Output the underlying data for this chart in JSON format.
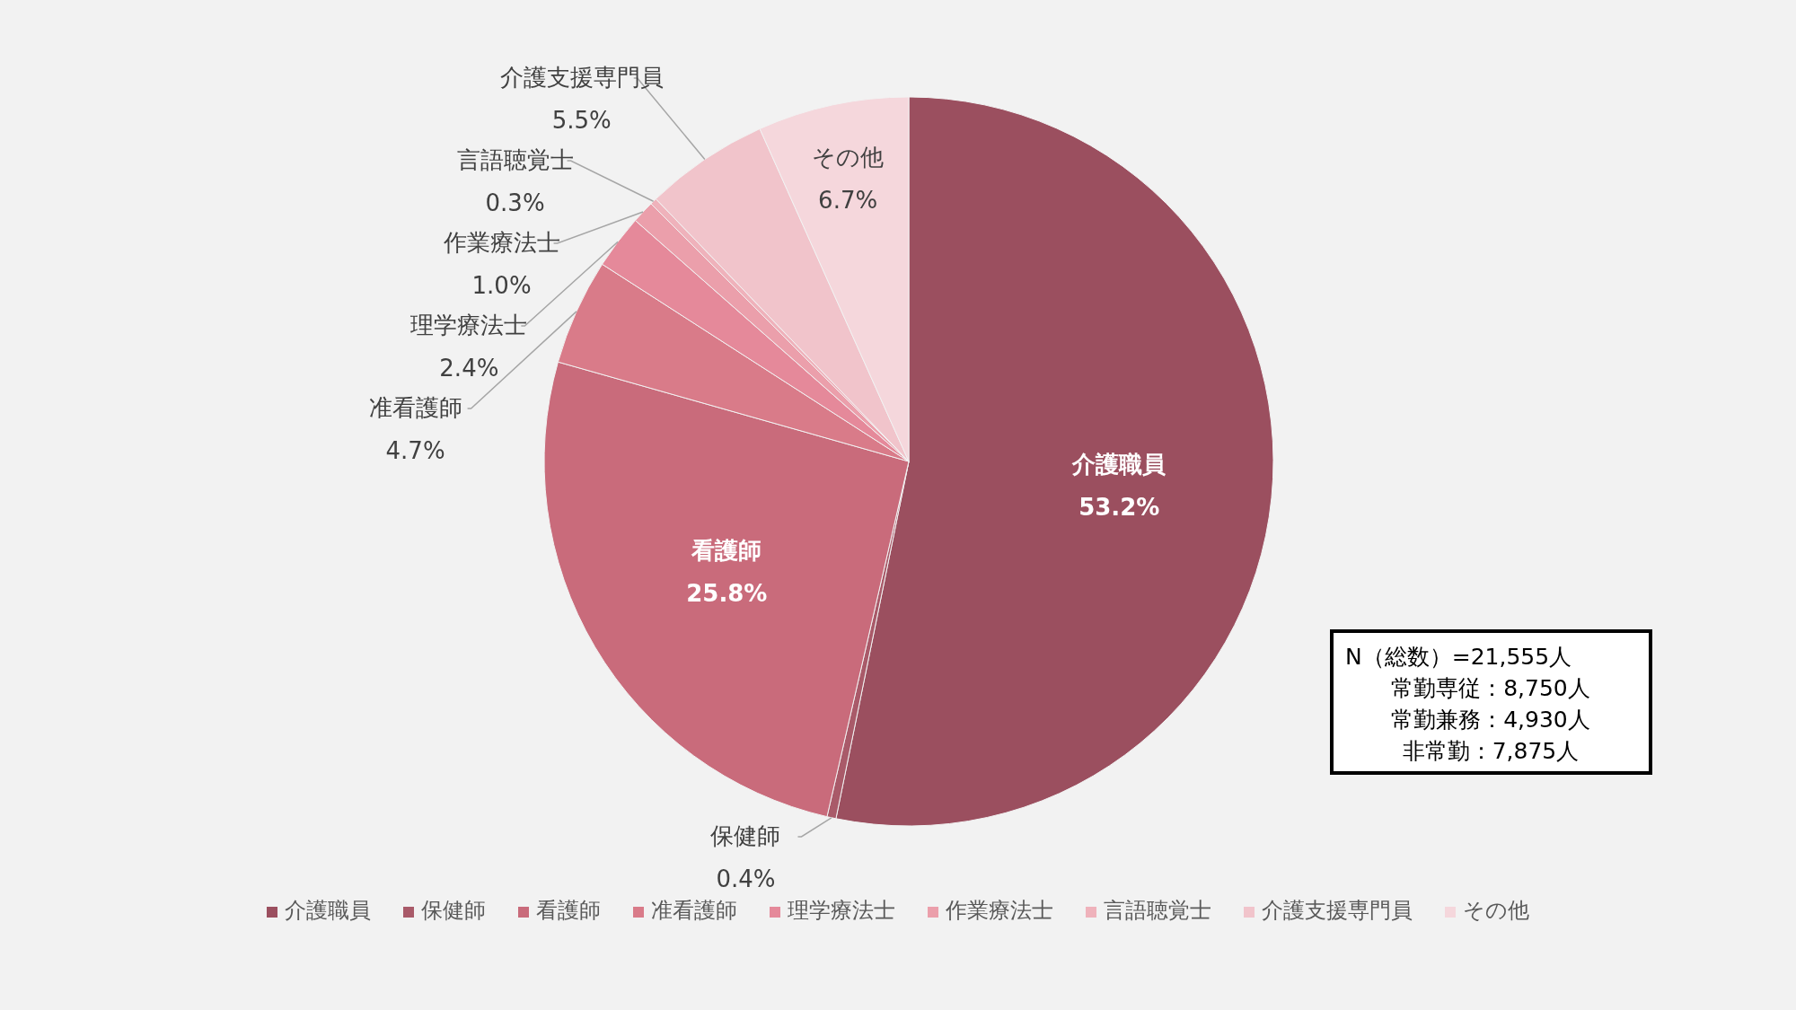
{
  "chart_data": {
    "type": "pie",
    "categories": [
      "介護職員",
      "保健師",
      "看護師",
      "准看護師",
      "理学療法士",
      "作業療法士",
      "言語聴覚士",
      "介護支援専門員",
      "その他"
    ],
    "values": [
      53.2,
      0.4,
      25.8,
      4.7,
      2.4,
      1.0,
      0.3,
      5.5,
      6.7
    ],
    "value_labels": [
      "53.2%",
      "0.4%",
      "25.8%",
      "4.7%",
      "2.4%",
      "1.0%",
      "0.3%",
      "5.5%",
      "6.7%"
    ],
    "colors": [
      "#9b4f5f",
      "#a95a69",
      "#c96b7b",
      "#d97b89",
      "#e5899a",
      "#eb9fab",
      "#efb2bb",
      "#f1c4cb",
      "#f5d7dc"
    ],
    "legend": "bottom",
    "annotations": [
      "N（総数）=21,555人",
      "常勤専従：8,750人",
      "常勤兼務：4,930人",
      "非常勤：7,875人"
    ]
  }
}
